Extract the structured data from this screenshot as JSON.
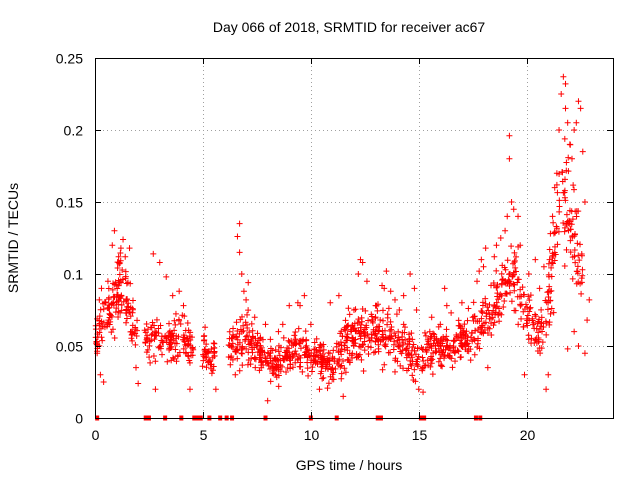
{
  "chart_data": {
    "type": "scatter",
    "title": "Day 066 of 2018, SRMTID for receiver ac67",
    "xlabel": "GPS time / hours",
    "ylabel": "SRMTID / TECUs",
    "xlim": [
      0,
      24
    ],
    "ylim": [
      0,
      0.25
    ],
    "x_ticks": [
      0,
      5,
      10,
      15,
      20
    ],
    "x_tick_labels": [
      "0",
      "5",
      "10",
      "15",
      "20"
    ],
    "y_ticks": [
      0,
      0.05,
      0.1,
      0.15,
      0.2,
      0.25
    ],
    "y_tick_labels": [
      "0",
      "0.05",
      "0.1",
      "0.15",
      "0.2",
      "0.25"
    ],
    "grid": true,
    "marker": "+",
    "series": [
      {
        "name": "SRMTID",
        "color": "#ff0000",
        "trend": [
          {
            "x": 0.0,
            "y": 0.055,
            "spread": 0.012
          },
          {
            "x": 0.3,
            "y": 0.068,
            "spread": 0.018
          },
          {
            "x": 0.8,
            "y": 0.078,
            "spread": 0.02
          },
          {
            "x": 1.2,
            "y": 0.092,
            "spread": 0.022
          },
          {
            "x": 1.5,
            "y": 0.08,
            "spread": 0.022
          },
          {
            "x": 1.9,
            "y": 0.058,
            "spread": 0.012
          },
          {
            "x": 2.8,
            "y": 0.055,
            "spread": 0.015
          },
          {
            "x": 3.5,
            "y": 0.052,
            "spread": 0.015
          },
          {
            "x": 4.2,
            "y": 0.055,
            "spread": 0.015
          },
          {
            "x": 4.6,
            "y": 0.048,
            "spread": 0.012
          },
          {
            "x": 5.4,
            "y": 0.042,
            "spread": 0.01
          },
          {
            "x": 6.5,
            "y": 0.05,
            "spread": 0.015
          },
          {
            "x": 7.0,
            "y": 0.058,
            "spread": 0.018
          },
          {
            "x": 7.8,
            "y": 0.042,
            "spread": 0.012
          },
          {
            "x": 8.5,
            "y": 0.038,
            "spread": 0.012
          },
          {
            "x": 9.3,
            "y": 0.048,
            "spread": 0.014
          },
          {
            "x": 10.3,
            "y": 0.042,
            "spread": 0.012
          },
          {
            "x": 11.0,
            "y": 0.036,
            "spread": 0.011
          },
          {
            "x": 11.8,
            "y": 0.055,
            "spread": 0.018
          },
          {
            "x": 12.5,
            "y": 0.058,
            "spread": 0.02
          },
          {
            "x": 13.5,
            "y": 0.06,
            "spread": 0.02
          },
          {
            "x": 14.3,
            "y": 0.05,
            "spread": 0.018
          },
          {
            "x": 14.9,
            "y": 0.04,
            "spread": 0.014
          },
          {
            "x": 15.5,
            "y": 0.048,
            "spread": 0.014
          },
          {
            "x": 16.5,
            "y": 0.05,
            "spread": 0.013
          },
          {
            "x": 17.5,
            "y": 0.058,
            "spread": 0.014
          },
          {
            "x": 18.2,
            "y": 0.07,
            "spread": 0.018
          },
          {
            "x": 18.8,
            "y": 0.085,
            "spread": 0.022
          },
          {
            "x": 19.3,
            "y": 0.1,
            "spread": 0.025
          },
          {
            "x": 19.9,
            "y": 0.08,
            "spread": 0.02
          },
          {
            "x": 20.3,
            "y": 0.065,
            "spread": 0.018
          },
          {
            "x": 20.8,
            "y": 0.06,
            "spread": 0.02
          },
          {
            "x": 21.2,
            "y": 0.11,
            "spread": 0.035
          },
          {
            "x": 21.6,
            "y": 0.155,
            "spread": 0.035
          },
          {
            "x": 22.0,
            "y": 0.14,
            "spread": 0.035
          },
          {
            "x": 22.3,
            "y": 0.12,
            "spread": 0.035
          },
          {
            "x": 22.6,
            "y": 0.09,
            "spread": 0.025
          }
        ],
        "points": [
          [
            0.05,
            0.052
          ],
          [
            0.1,
            0.045
          ],
          [
            0.2,
            0.082
          ],
          [
            0.25,
            0.03
          ],
          [
            0.3,
            0.09
          ],
          [
            0.4,
            0.025
          ],
          [
            0.6,
            0.095
          ],
          [
            0.8,
            0.12
          ],
          [
            0.9,
            0.13
          ],
          [
            1.1,
            0.108
          ],
          [
            1.2,
            0.118
          ],
          [
            1.3,
            0.124
          ],
          [
            1.4,
            0.112
          ],
          [
            1.6,
            0.118
          ],
          [
            1.7,
            0.06
          ],
          [
            1.9,
            0.035
          ],
          [
            2.0,
            0.024
          ],
          [
            2.7,
            0.114
          ],
          [
            2.8,
            0.02
          ],
          [
            3.0,
            0.108
          ],
          [
            3.3,
            0.098
          ],
          [
            3.6,
            0.085
          ],
          [
            3.9,
            0.088
          ],
          [
            4.1,
            0.078
          ],
          [
            4.3,
            0.066
          ],
          [
            4.4,
            0.02
          ],
          [
            5.1,
            0.063
          ],
          [
            5.5,
            0.052
          ],
          [
            5.6,
            0.02
          ],
          [
            6.5,
            0.03
          ],
          [
            6.6,
            0.126
          ],
          [
            6.7,
            0.135
          ],
          [
            6.7,
            0.115
          ],
          [
            6.8,
            0.1
          ],
          [
            6.9,
            0.088
          ],
          [
            7.0,
            0.082
          ],
          [
            7.1,
            0.094
          ],
          [
            7.4,
            0.07
          ],
          [
            7.9,
            0.065
          ],
          [
            8.0,
            0.012
          ],
          [
            8.5,
            0.06
          ],
          [
            8.7,
            0.065
          ],
          [
            9.0,
            0.078
          ],
          [
            9.4,
            0.08
          ],
          [
            9.5,
            0.078
          ],
          [
            9.7,
            0.085
          ],
          [
            10.0,
            0.065
          ],
          [
            10.4,
            0.02
          ],
          [
            10.9,
            0.08
          ],
          [
            11.3,
            0.085
          ],
          [
            11.5,
            0.015
          ],
          [
            11.8,
            0.072
          ],
          [
            12.0,
            0.075
          ],
          [
            12.2,
            0.1
          ],
          [
            12.3,
            0.11
          ],
          [
            12.4,
            0.108
          ],
          [
            12.6,
            0.095
          ],
          [
            12.8,
            0.072
          ],
          [
            13.0,
            0.078
          ],
          [
            13.3,
            0.092
          ],
          [
            13.4,
            0.09
          ],
          [
            13.5,
            0.102
          ],
          [
            13.7,
            0.088
          ],
          [
            13.9,
            0.082
          ],
          [
            14.1,
            0.075
          ],
          [
            14.3,
            0.085
          ],
          [
            14.6,
            0.1
          ],
          [
            14.8,
            0.09
          ],
          [
            14.9,
            0.075
          ],
          [
            15.0,
            0.02
          ],
          [
            15.2,
            0.018
          ],
          [
            15.6,
            0.07
          ],
          [
            16.0,
            0.065
          ],
          [
            16.2,
            0.09
          ],
          [
            16.3,
            0.078
          ],
          [
            16.5,
            0.073
          ],
          [
            17.0,
            0.08
          ],
          [
            17.3,
            0.076
          ],
          [
            17.5,
            0.07
          ],
          [
            17.7,
            0.095
          ],
          [
            17.8,
            0.102
          ],
          [
            17.9,
            0.11
          ],
          [
            18.0,
            0.105
          ],
          [
            18.1,
            0.118
          ],
          [
            18.2,
            0.035
          ],
          [
            18.5,
            0.112
          ],
          [
            18.6,
            0.12
          ],
          [
            18.8,
            0.125
          ],
          [
            19.0,
            0.13
          ],
          [
            19.1,
            0.14
          ],
          [
            19.2,
            0.18
          ],
          [
            19.2,
            0.196
          ],
          [
            19.3,
            0.15
          ],
          [
            19.4,
            0.145
          ],
          [
            19.6,
            0.14
          ],
          [
            19.7,
            0.12
          ],
          [
            19.9,
            0.03
          ],
          [
            20.1,
            0.1
          ],
          [
            20.4,
            0.11
          ],
          [
            20.6,
            0.09
          ],
          [
            20.8,
            0.105
          ],
          [
            20.9,
            0.02
          ],
          [
            21.0,
            0.03
          ],
          [
            21.1,
            0.128
          ],
          [
            21.2,
            0.14
          ],
          [
            21.3,
            0.16
          ],
          [
            21.4,
            0.17
          ],
          [
            21.5,
            0.2
          ],
          [
            21.6,
            0.225
          ],
          [
            21.7,
            0.237
          ],
          [
            21.8,
            0.232
          ],
          [
            21.8,
            0.215
          ],
          [
            21.9,
            0.205
          ],
          [
            22.0,
            0.19
          ],
          [
            22.1,
            0.18
          ],
          [
            22.2,
            0.2
          ],
          [
            22.3,
            0.205
          ],
          [
            22.4,
            0.22
          ],
          [
            22.5,
            0.215
          ],
          [
            22.6,
            0.185
          ],
          [
            22.7,
            0.15
          ],
          [
            22.8,
            0.068
          ],
          [
            22.9,
            0.082
          ],
          [
            22.4,
            0.05
          ],
          [
            22.2,
            0.06
          ],
          [
            21.9,
            0.048
          ],
          [
            22.7,
            0.045
          ]
        ],
        "zero_points": [
          0.1,
          2.35,
          2.5,
          3.25,
          4.0,
          4.6,
          4.75,
          4.9,
          5.3,
          5.8,
          6.1,
          6.35,
          7.9,
          10.0,
          11.2,
          13.1,
          13.25,
          15.1,
          15.25,
          17.65,
          17.85
        ]
      }
    ]
  }
}
